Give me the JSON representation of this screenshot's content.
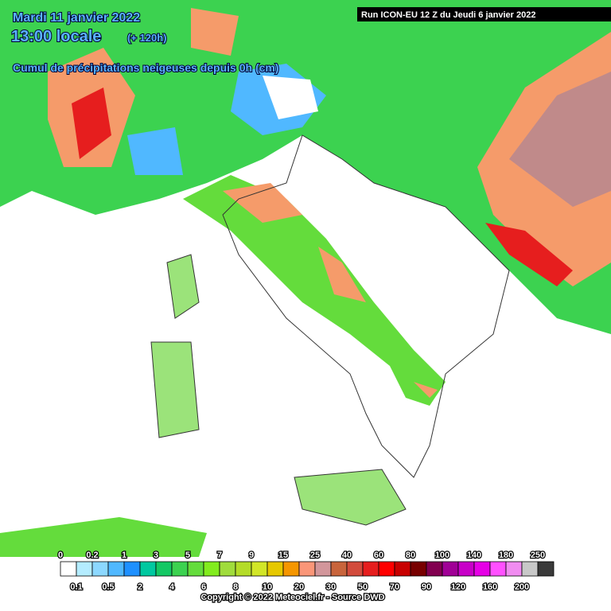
{
  "header": {
    "date": "Mardi 11 janvier 2022",
    "time": "13:00 locale",
    "lead": "(+ 120h)",
    "subtitle": "Cumul de précipitations neigeuses depuis 0h (cm)",
    "run": "Run ICON-EU 12 Z du Jeudi 6 janvier 2022"
  },
  "legend": {
    "thresholds": [
      0,
      0.1,
      0.2,
      0.5,
      1,
      2,
      3,
      4,
      5,
      6,
      7,
      8,
      9,
      10,
      15,
      20,
      25,
      30,
      40,
      50,
      60,
      70,
      80,
      90,
      100,
      120,
      140,
      160,
      180,
      200,
      250
    ],
    "colors": [
      "#ffffff",
      "#b4ecff",
      "#8cd8ff",
      "#50b8ff",
      "#1e90ff",
      "#00c8a0",
      "#14c864",
      "#3cd250",
      "#64dc3c",
      "#82ec1e",
      "#a0dc3c",
      "#b4dc28",
      "#d2e628",
      "#e6c800",
      "#f59600",
      "#fa9678",
      "#d2969b",
      "#c8643c",
      "#d24b3c",
      "#e61e1e",
      "#ff0000",
      "#c80000",
      "#780000",
      "#820050",
      "#a00096",
      "#c800c8",
      "#e600e6",
      "#ff50ff",
      "#f08cf0",
      "#c8c8c8",
      "#3a3a3a"
    ]
  },
  "footer": {
    "copyright": "Copyright © 2022 Meteociel.fr - Source DWD"
  }
}
